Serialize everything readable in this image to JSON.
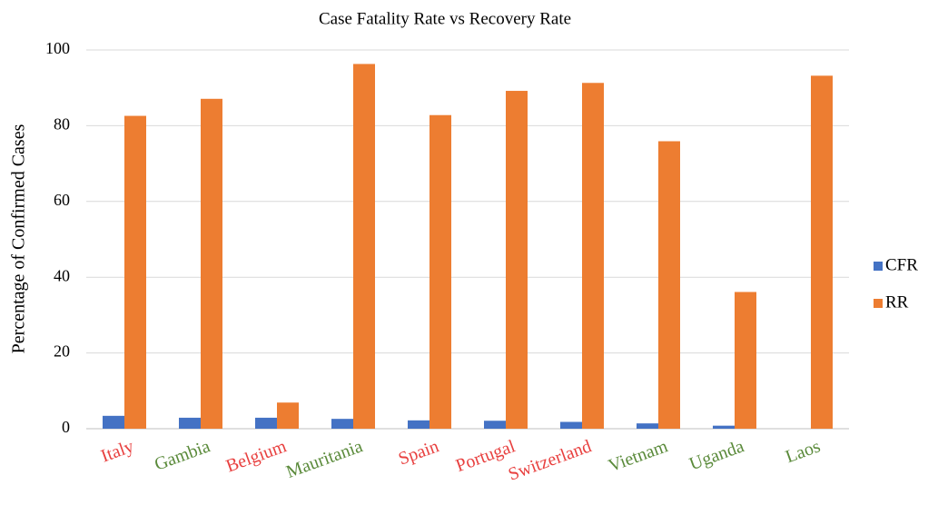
{
  "chart_data": {
    "type": "bar",
    "title": "Case Fatality Rate vs Recovery Rate",
    "y_label": "Percentage of Confirmed Cases",
    "categories": [
      "Italy",
      "Gambia",
      "Belgium",
      "Mauritania",
      "Spain",
      "Portugal",
      "Switzerland",
      "Vietnam",
      "Uganda",
      "Laos"
    ],
    "category_colors": [
      "#e8403f",
      "#5a8a3a",
      "#e8403f",
      "#5a8a3a",
      "#e8403f",
      "#e8403f",
      "#e8403f",
      "#5a8a3a",
      "#5a8a3a",
      "#5a8a3a"
    ],
    "series": [
      {
        "name": "CFR",
        "color": "#4472c4",
        "values": [
          3.4,
          2.9,
          2.9,
          2.6,
          2.2,
          2.1,
          1.8,
          1.4,
          0.8,
          0
        ]
      },
      {
        "name": "RR",
        "color": "#ed7d31",
        "values": [
          82.6,
          87.1,
          6.9,
          96.3,
          82.8,
          89.2,
          91.3,
          75.9,
          36.1,
          93.2
        ]
      }
    ],
    "ylim": [
      0,
      100
    ],
    "yticks": [
      0,
      20,
      40,
      60,
      80,
      100
    ],
    "grid": true,
    "legend": "right"
  }
}
